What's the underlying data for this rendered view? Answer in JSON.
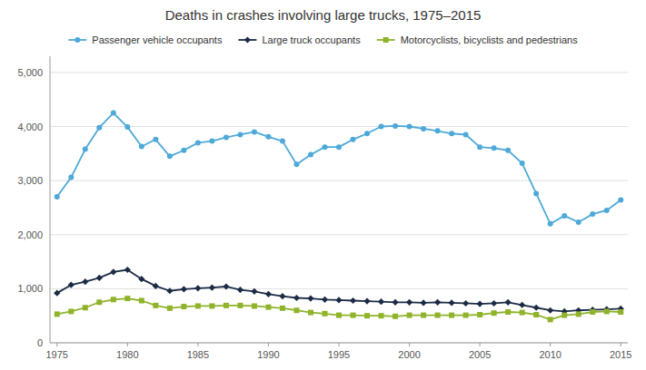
{
  "chart_data": {
    "type": "line",
    "title": "Deaths in crashes involving large trucks, 1975–2015",
    "x": [
      1975,
      1976,
      1977,
      1978,
      1979,
      1980,
      1981,
      1982,
      1983,
      1984,
      1985,
      1986,
      1987,
      1988,
      1989,
      1990,
      1991,
      1992,
      1993,
      1994,
      1995,
      1996,
      1997,
      1998,
      1999,
      2000,
      2001,
      2002,
      2003,
      2004,
      2005,
      2006,
      2007,
      2008,
      2009,
      2010,
      2011,
      2012,
      2013,
      2014,
      2015
    ],
    "series": [
      {
        "name": "Passenger vehicle occupants",
        "color": "#4da9d8",
        "marker": "circle",
        "values": [
          2700,
          3060,
          3580,
          3980,
          4250,
          3990,
          3630,
          3760,
          3450,
          3560,
          3700,
          3730,
          3800,
          3850,
          3900,
          3810,
          3730,
          3300,
          3480,
          3620,
          3620,
          3760,
          3870,
          4000,
          4010,
          4000,
          3960,
          3920,
          3870,
          3850,
          3620,
          3600,
          3560,
          3320,
          2760,
          2200,
          2350,
          2230,
          2380,
          2450,
          2640
        ]
      },
      {
        "name": "Large truck occupants",
        "color": "#1c2b45",
        "marker": "diamond",
        "values": [
          920,
          1070,
          1130,
          1200,
          1310,
          1350,
          1180,
          1050,
          960,
          990,
          1010,
          1020,
          1040,
          980,
          950,
          900,
          860,
          830,
          820,
          800,
          790,
          780,
          770,
          760,
          750,
          750,
          740,
          750,
          740,
          730,
          720,
          730,
          750,
          700,
          650,
          600,
          580,
          600,
          610,
          620,
          630
        ]
      },
      {
        "name": "Motorcyclists, bicyclists and pedestrians",
        "color": "#8fb32a",
        "marker": "square",
        "values": [
          530,
          580,
          650,
          750,
          800,
          820,
          780,
          690,
          640,
          670,
          680,
          680,
          690,
          690,
          680,
          660,
          640,
          600,
          560,
          540,
          510,
          510,
          500,
          500,
          490,
          510,
          510,
          510,
          510,
          510,
          520,
          550,
          570,
          560,
          520,
          430,
          510,
          530,
          570,
          580,
          570
        ]
      }
    ],
    "xlim": [
      1974.5,
      2015.5
    ],
    "ylim": [
      0,
      5300
    ],
    "xticks": [
      1975,
      1980,
      1985,
      1990,
      1995,
      2000,
      2005,
      2010,
      2015
    ],
    "yticks": [
      0,
      {
        "value": 1000,
        "label": "1,000"
      },
      {
        "value": 2000,
        "label": "2,000"
      },
      {
        "value": 3000,
        "label": "3,000"
      },
      {
        "value": 4000,
        "label": "4,000"
      },
      {
        "value": 5000,
        "label": "5,000"
      }
    ],
    "grid": true,
    "legend": "top"
  }
}
